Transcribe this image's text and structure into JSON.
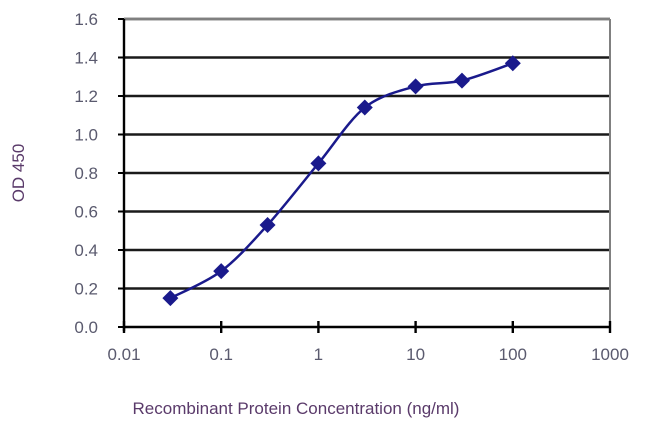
{
  "chart_data": {
    "type": "line",
    "title": "",
    "xlabel": "Recombinant Protein Concentration (ng/ml)",
    "ylabel": "OD 450",
    "xscale": "log",
    "xlim": [
      0.01,
      1000
    ],
    "ylim": [
      0.0,
      1.6
    ],
    "x_ticks": [
      "0.01",
      "0.1",
      "1",
      "10",
      "100",
      "1000"
    ],
    "y_ticks": [
      "0.0",
      "0.2",
      "0.4",
      "0.6",
      "0.8",
      "1.0",
      "1.2",
      "1.4",
      "1.6"
    ],
    "grid": true,
    "legend": null,
    "series": [
      {
        "name": "OD 450",
        "color": "#1a1a8c",
        "marker": "diamond",
        "x": [
          0.03,
          0.1,
          0.3,
          1,
          3,
          10,
          30,
          100
        ],
        "values": [
          0.15,
          0.29,
          0.53,
          0.85,
          1.14,
          1.25,
          1.28,
          1.37
        ]
      }
    ]
  },
  "colors": {
    "series": "#1a1a8c",
    "axis": "#000000",
    "grid": "#000000",
    "frame": "#808080"
  }
}
